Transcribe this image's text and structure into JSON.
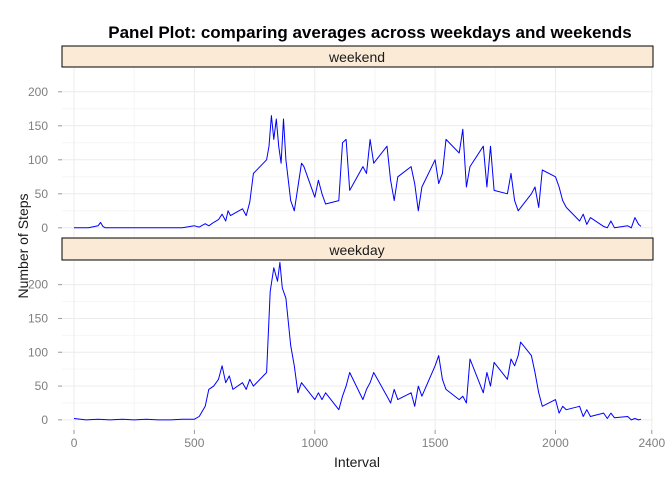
{
  "chart_data": {
    "type": "line",
    "title": "Panel Plot: comparing averages across weekdays and weekends",
    "xlabel": "Interval",
    "ylabel": "Number of Steps",
    "xlim": [
      -50,
      2405
    ],
    "ylim": [
      -15,
      235
    ],
    "x_ticks": [
      0,
      500,
      1000,
      1500,
      2000,
      2400
    ],
    "y_ticks": [
      0,
      50,
      100,
      150,
      200
    ],
    "grid": true,
    "line_color": "#0000ff",
    "strip_fill": "#fbebd6",
    "panels": [
      {
        "name": "weekend",
        "series": {
          "x": [
            0,
            60,
            100,
            110,
            120,
            130,
            200,
            300,
            400,
            450,
            500,
            520,
            545,
            560,
            580,
            600,
            615,
            630,
            640,
            650,
            700,
            715,
            730,
            745,
            800,
            810,
            820,
            830,
            840,
            850,
            860,
            870,
            880,
            900,
            915,
            930,
            945,
            955,
            1000,
            1015,
            1030,
            1045,
            1100,
            1115,
            1130,
            1145,
            1200,
            1215,
            1230,
            1245,
            1300,
            1315,
            1330,
            1345,
            1400,
            1415,
            1430,
            1445,
            1500,
            1515,
            1530,
            1545,
            1600,
            1615,
            1630,
            1645,
            1700,
            1715,
            1730,
            1745,
            1800,
            1815,
            1830,
            1845,
            1900,
            1915,
            1930,
            1945,
            2000,
            2015,
            2030,
            2045,
            2100,
            2115,
            2130,
            2145,
            2200,
            2215,
            2230,
            2245,
            2300,
            2315,
            2330,
            2345,
            2355
          ],
          "values": [
            0,
            0,
            3,
            8,
            2,
            0,
            0,
            0,
            0,
            0,
            3,
            1,
            6,
            3,
            8,
            12,
            20,
            10,
            25,
            18,
            28,
            18,
            38,
            80,
            100,
            120,
            165,
            130,
            160,
            120,
            95,
            160,
            100,
            40,
            25,
            60,
            95,
            90,
            45,
            70,
            50,
            35,
            40,
            125,
            130,
            55,
            90,
            80,
            130,
            95,
            120,
            70,
            40,
            75,
            90,
            65,
            25,
            60,
            100,
            65,
            80,
            130,
            110,
            145,
            60,
            90,
            120,
            60,
            120,
            55,
            50,
            80,
            40,
            25,
            50,
            60,
            30,
            85,
            75,
            60,
            40,
            30,
            10,
            20,
            5,
            15,
            2,
            0,
            10,
            0,
            3,
            0,
            15,
            5,
            2
          ]
        }
      },
      {
        "name": "weekday",
        "series": {
          "x": [
            0,
            50,
            100,
            150,
            200,
            250,
            300,
            350,
            400,
            450,
            500,
            520,
            545,
            560,
            580,
            600,
            615,
            630,
            645,
            660,
            700,
            715,
            730,
            745,
            800,
            815,
            830,
            845,
            855,
            865,
            880,
            900,
            915,
            930,
            945,
            1000,
            1015,
            1030,
            1045,
            1100,
            1115,
            1130,
            1145,
            1200,
            1215,
            1230,
            1245,
            1300,
            1315,
            1330,
            1345,
            1400,
            1415,
            1430,
            1445,
            1500,
            1515,
            1530,
            1545,
            1600,
            1615,
            1630,
            1645,
            1700,
            1715,
            1730,
            1745,
            1800,
            1815,
            1830,
            1845,
            1855,
            1900,
            1915,
            1930,
            1945,
            2000,
            2015,
            2030,
            2045,
            2100,
            2115,
            2130,
            2145,
            2200,
            2215,
            2230,
            2245,
            2300,
            2315,
            2330,
            2345,
            2355
          ],
          "values": [
            2,
            0,
            1,
            0,
            1,
            0,
            1,
            0,
            0,
            1,
            1,
            5,
            20,
            45,
            50,
            60,
            80,
            55,
            65,
            45,
            55,
            45,
            60,
            50,
            70,
            190,
            225,
            205,
            233,
            195,
            180,
            110,
            80,
            40,
            55,
            30,
            40,
            30,
            40,
            15,
            35,
            50,
            70,
            30,
            45,
            55,
            70,
            35,
            25,
            45,
            30,
            40,
            20,
            50,
            35,
            80,
            95,
            60,
            45,
            30,
            35,
            25,
            90,
            40,
            70,
            50,
            85,
            60,
            90,
            80,
            95,
            115,
            95,
            70,
            40,
            20,
            30,
            10,
            20,
            15,
            20,
            5,
            15,
            5,
            10,
            2,
            10,
            3,
            5,
            0,
            2,
            0,
            1
          ]
        }
      }
    ]
  }
}
